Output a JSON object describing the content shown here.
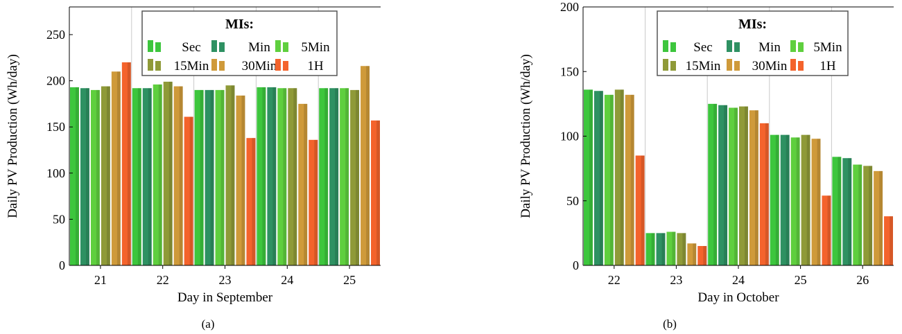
{
  "colors": {
    "Sec": "#3dc63d",
    "Min": "#2e9162",
    "5Min": "#5fcf3e",
    "15Min": "#8f9a38",
    "30Min": "#cf9a3a",
    "1H": "#f4632c"
  },
  "chart_data": [
    {
      "type": "bar",
      "caption": "(a)",
      "xlabel": "Day in September",
      "ylabel": "Daily PV Production (Wh/day)",
      "ylim": [
        0,
        280
      ],
      "yticks": [
        0,
        50,
        100,
        150,
        200,
        250
      ],
      "grid": "vertical separators between days",
      "categories": [
        "21",
        "22",
        "23",
        "24",
        "25"
      ],
      "legend": {
        "title": "MIs:",
        "placement": "top-center"
      },
      "series": [
        {
          "name": "Sec",
          "values": [
            193,
            192,
            190,
            193,
            192
          ]
        },
        {
          "name": "Min",
          "values": [
            192,
            192,
            190,
            193,
            192
          ]
        },
        {
          "name": "5Min",
          "values": [
            190,
            196,
            190,
            192,
            192
          ]
        },
        {
          "name": "15Min",
          "values": [
            194,
            199,
            195,
            192,
            190
          ]
        },
        {
          "name": "30Min",
          "values": [
            210,
            194,
            184,
            175,
            216
          ]
        },
        {
          "name": "1H",
          "values": [
            220,
            161,
            138,
            136,
            157
          ]
        }
      ]
    },
    {
      "type": "bar",
      "caption": "(b)",
      "xlabel": "Day in October",
      "ylabel": "Daily PV Production (Wh/day)",
      "ylim": [
        0,
        200
      ],
      "yticks": [
        0,
        50,
        100,
        150,
        200
      ],
      "grid": "vertical separators between days",
      "categories": [
        "22",
        "23",
        "24",
        "25",
        "26"
      ],
      "legend": {
        "title": "MIs:",
        "placement": "top-center"
      },
      "series": [
        {
          "name": "Sec",
          "values": [
            136,
            25,
            125,
            101,
            84
          ]
        },
        {
          "name": "Min",
          "values": [
            135,
            25,
            124,
            101,
            83
          ]
        },
        {
          "name": "5Min",
          "values": [
            132,
            26,
            122,
            99,
            78
          ]
        },
        {
          "name": "15Min",
          "values": [
            136,
            25,
            123,
            101,
            77
          ]
        },
        {
          "name": "30Min",
          "values": [
            132,
            17,
            120,
            98,
            73
          ]
        },
        {
          "name": "1H",
          "values": [
            85,
            15,
            110,
            54,
            38
          ]
        }
      ]
    }
  ]
}
